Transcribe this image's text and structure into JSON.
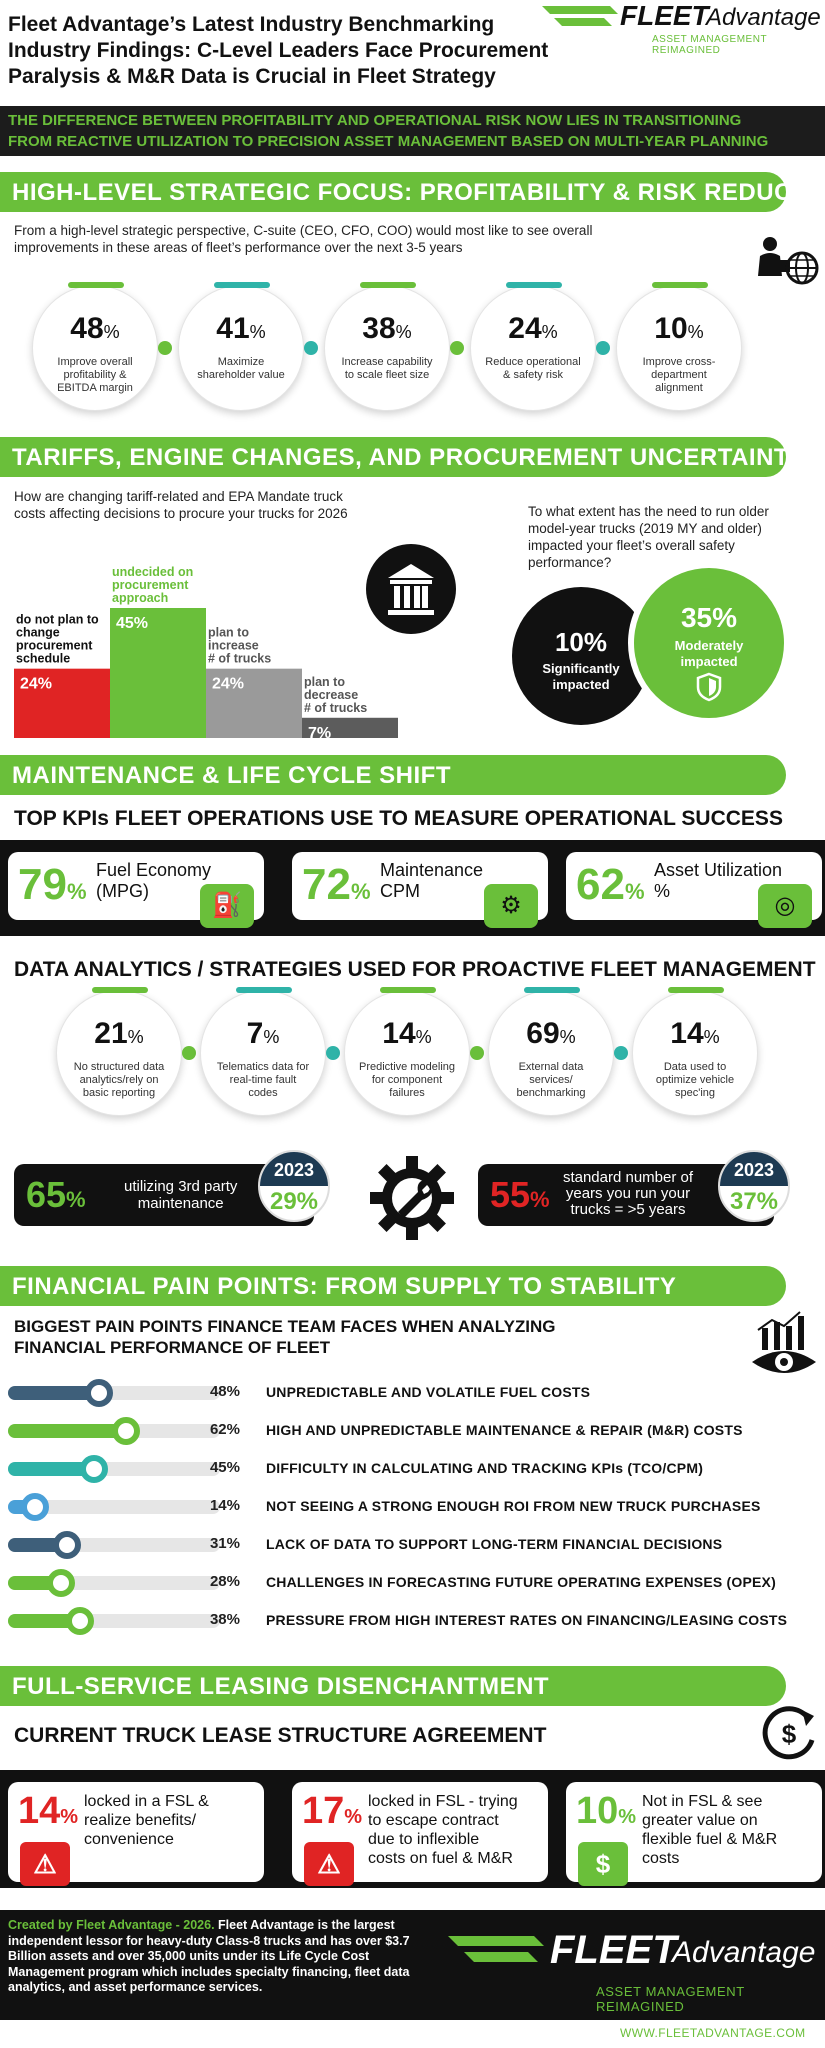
{
  "header": {
    "title_lines": [
      "Fleet Advantage’s Latest Industry Benchmarking",
      "Industry Findings: C-Level Leaders Face Procurement",
      "Paralysis & M&R Data is Crucial in Fleet Strategy"
    ],
    "logo_text_bold": "FLEET",
    "logo_text_light": "Advantage",
    "logo_tagline": "ASSET MANAGEMENT REIMAGINED"
  },
  "intro_banner": [
    "THE DIFFERENCE BETWEEN PROFITABILITY AND OPERATIONAL RISK NOW LIES IN TRANSITIONING",
    "FROM REACTIVE UTILIZATION TO PRECISION ASSET MANAGEMENT BASED ON MULTI-YEAR PLANNING"
  ],
  "section1": {
    "title": "HIGH-LEVEL STRATEGIC FOCUS: PROFITABILITY & RISK REDUCTION",
    "question": [
      "From a high-level strategic perspective, C-suite (CEO, CFO, COO) would most like to see overall",
      "improvements in these areas of fleet’s performance over the next 3-5 years"
    ],
    "items": [
      {
        "value": "48",
        "unit": "%",
        "label": "Improve overall profitability & EBITDA margin",
        "accent": "#6abf3a"
      },
      {
        "value": "41",
        "unit": "%",
        "label": "Maximize shareholder value",
        "accent": "#2fb3a8"
      },
      {
        "value": "38",
        "unit": "%",
        "label": "Increase capability to scale fleet size",
        "accent": "#6abf3a"
      },
      {
        "value": "24",
        "unit": "%",
        "label": "Reduce operational & safety risk",
        "accent": "#2fb3a8"
      },
      {
        "value": "10",
        "unit": "%",
        "label": "Improve cross-department alignment",
        "accent": "#6abf3a"
      }
    ]
  },
  "section2": {
    "title": "TARIFFS, ENGINE CHANGES, AND PROCUREMENT UNCERTAINTY",
    "question": [
      "How are changing tariff-related and EPA Mandate truck",
      "costs affecting decisions to procure your trucks for 2026"
    ],
    "chart_data": {
      "type": "bar",
      "categories": [
        "do not plan to change procurement schedule",
        "undecided on procurement approach",
        "plan to increase # of trucks",
        "plan to decrease # of trucks"
      ],
      "values": [
        24,
        45,
        24,
        7
      ],
      "value_labels": [
        "24%",
        "45%",
        "24%",
        "7%"
      ],
      "colors": [
        "#e02424",
        "#6abf3a",
        "#9a9a9a",
        "#5c5c5c"
      ],
      "ylim": [
        0,
        45
      ]
    },
    "safety_question": [
      "To what extent has the need to run older",
      "model-year trucks (2019 MY and older)",
      "impacted your fleet’s overall safety",
      "performance?"
    ],
    "safety_items": [
      {
        "value": "10%",
        "label": "Significantly impacted"
      },
      {
        "value": "35%",
        "label": "Moderately impacted"
      }
    ]
  },
  "section3": {
    "title": "MAINTENANCE & LIFE CYCLE SHIFT",
    "kpi_heading": "TOP KPIs FLEET OPERATIONS USE TO MEASURE OPERATIONAL SUCCESS",
    "kpis": [
      {
        "value": "79",
        "unit": "%",
        "label_lines": [
          "Fuel Economy",
          "(MPG)"
        ],
        "icon": "fuel-pump-icon",
        "glyph": "⛽"
      },
      {
        "value": "72",
        "unit": "%",
        "label_lines": [
          "Maintenance",
          "CPM"
        ],
        "icon": "wrench-gear-icon",
        "glyph": "⚙"
      },
      {
        "value": "62",
        "unit": "%",
        "label_lines": [
          "Asset Utilization",
          "%"
        ],
        "icon": "gauge-icon",
        "glyph": "◎"
      }
    ],
    "analytics_heading": "DATA ANALYTICS / STRATEGIES USED FOR PROACTIVE FLEET MANAGEMENT",
    "analytics": [
      {
        "value": "21",
        "unit": "%",
        "label": "No structured data analytics/rely on basic reporting",
        "accent": "#6abf3a"
      },
      {
        "value": "7",
        "unit": "%",
        "label": "Telematics data for real-time fault codes",
        "accent": "#2fb3a8"
      },
      {
        "value": "14",
        "unit": "%",
        "label": "Predictive modeling for component failures",
        "accent": "#6abf3a"
      },
      {
        "value": "69",
        "unit": "%",
        "label": "External data services/ benchmarking",
        "accent": "#2fb3a8"
      },
      {
        "value": "14",
        "unit": "%",
        "label": "Data used to optimize vehicle spec'ing",
        "accent": "#6abf3a"
      }
    ],
    "third_party": {
      "value": "65",
      "unit": "%",
      "label_lines": [
        "utilizing 3rd party",
        "maintenance"
      ],
      "year": "2023",
      "year_value": "29%"
    },
    "years_run": {
      "value": "55",
      "unit": "%",
      "label_lines": [
        "standard number of",
        "years you run your",
        "trucks = >5 years"
      ],
      "year": "2023",
      "year_value": "37%"
    }
  },
  "section4": {
    "title": "FINANCIAL PAIN POINTS: FROM SUPPLY TO STABILITY",
    "heading_lines": [
      "BIGGEST PAIN POINTS FINANCE TEAM FACES WHEN ANALYZING",
      "FINANCIAL PERFORMANCE OF FLEET"
    ],
    "items": [
      {
        "value": 48,
        "label_value": "48%",
        "text": "UNPREDICTABLE AND VOLATILE FUEL COSTS",
        "color": "#3e5f7a"
      },
      {
        "value": 62,
        "label_value": "62%",
        "text": "HIGH AND UNPREDICTABLE MAINTENANCE & REPAIR (M&R) COSTS",
        "color": "#6abf3a"
      },
      {
        "value": 45,
        "label_value": "45%",
        "text": "DIFFICULTY IN CALCULATING AND TRACKING KPIs (TCO/CPM)",
        "color": "#2fb3a8"
      },
      {
        "value": 14,
        "label_value": "14%",
        "text": "NOT SEEING A STRONG ENOUGH ROI FROM NEW TRUCK PURCHASES",
        "color": "#4aa0d8"
      },
      {
        "value": 31,
        "label_value": "31%",
        "text": "LACK OF DATA TO SUPPORT LONG-TERM FINANCIAL DECISIONS",
        "color": "#3e5f7a"
      },
      {
        "value": 28,
        "label_value": "28%",
        "text": "CHALLENGES IN FORECASTING FUTURE OPERATING EXPENSES (OPEX)",
        "color": "#6abf3a"
      },
      {
        "value": 38,
        "label_value": "38%",
        "text": "PRESSURE FROM HIGH INTEREST RATES ON FINANCING/LEASING COSTS",
        "color": "#6abf3a"
      }
    ]
  },
  "section5": {
    "title": "FULL-SERVICE LEASING DISENCHANTMENT",
    "heading": "CURRENT TRUCK LEASE STRUCTURE AGREEMENT",
    "items": [
      {
        "value": "14",
        "unit": "%",
        "text_lines": [
          "locked in a FSL &",
          "realize benefits/",
          "convenience"
        ],
        "icon": "warning-icon",
        "glyph": "⚠",
        "color": "#e02424"
      },
      {
        "value": "17",
        "unit": "%",
        "text_lines": [
          "locked in FSL - trying",
          "to escape contract",
          "due to inflexible",
          "costs on fuel  & M&R"
        ],
        "icon": "warning-icon",
        "glyph": "⚠",
        "color": "#e02424"
      },
      {
        "value": "10",
        "unit": "%",
        "text_lines": [
          "Not in FSL & see",
          "greater value on",
          "flexible fuel & M&R",
          "costs"
        ],
        "icon": "dollar-icon",
        "glyph": "$",
        "color": "#6abf3a"
      }
    ]
  },
  "footer": {
    "created_by": "Created by Fleet Advantage - 2026.",
    "description": "Fleet Advantage is the largest independent lessor for heavy-duty Class-8 trucks and has over $3.7 Billion assets and over 35,000 units under its Life Cycle Cost Management program which includes specialty financing, fleet data analytics, and asset performance services.",
    "logo_text_bold": "FLEET",
    "logo_text_light": "Advantage",
    "logo_tagline": "ASSET MANAGEMENT REIMAGINED",
    "website": "WWW.FLEETADVANTAGE.COM"
  }
}
